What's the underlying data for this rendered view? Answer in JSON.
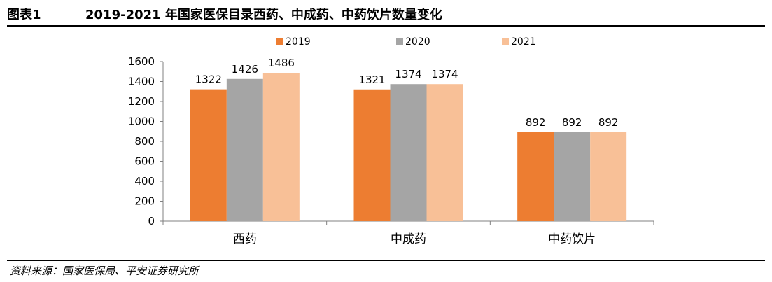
{
  "figure": {
    "label": "图表1",
    "title": "2019-2021 年国家医保目录西药、中成药、中药饮片数量变化"
  },
  "source_note": "资料来源：国家医保局、平安证券研究所",
  "chart_data": {
    "type": "bar",
    "title": "",
    "xlabel": "",
    "ylabel": "",
    "categories": [
      "西药",
      "中成药",
      "中药饮片"
    ],
    "series": [
      {
        "name": "2019",
        "values": [
          1322,
          1321,
          892
        ],
        "color": "#ED7D31"
      },
      {
        "name": "2020",
        "values": [
          1426,
          1374,
          892
        ],
        "color": "#A5A5A5"
      },
      {
        "name": "2021",
        "values": [
          1486,
          1374,
          892
        ],
        "color": "#F8C097"
      }
    ],
    "ylim": [
      0,
      1600
    ],
    "yticks": [
      0,
      200,
      400,
      600,
      800,
      1000,
      1200,
      1400,
      1600
    ],
    "grid": false,
    "legend_position": "top-center",
    "data_labels": true
  }
}
